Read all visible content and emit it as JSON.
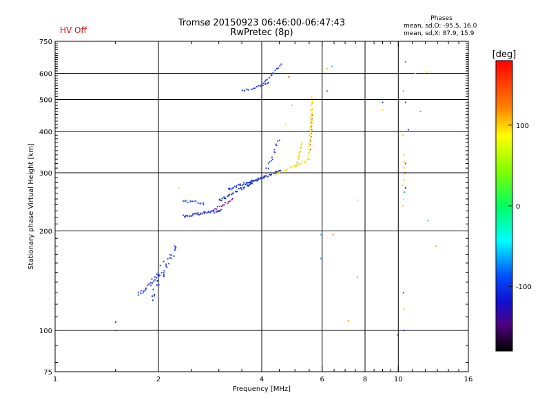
{
  "header": {
    "status": "HV Off",
    "title_line1": "Tromsø 20150923 06:46:00-06:47:43",
    "title_line2": "RwPretec (8p)"
  },
  "phase_stats": {
    "title": "Phases",
    "line_o": "mean, sd,O: -95.5, 16.0",
    "line_x": "mean, sd,X: 87.9, 15.9"
  },
  "colorbar": {
    "label": "[deg]",
    "range": [
      -180,
      180
    ],
    "ticks": [
      {
        "v": 100,
        "t": "100"
      },
      {
        "v": 0,
        "t": "0"
      },
      {
        "v": -100,
        "t": "-100"
      }
    ]
  },
  "chart_data": {
    "type": "scatter",
    "xlabel": "Frequency [MHz]",
    "ylabel": "Stationary phase Virtual Height [km]",
    "xscale": "log2",
    "yscale": "log",
    "xlim": [
      1,
      16
    ],
    "ylim": [
      75,
      750
    ],
    "xticks": [
      {
        "v": 1,
        "t": "1"
      },
      {
        "v": 2,
        "t": "2"
      },
      {
        "v": 4,
        "t": "4"
      },
      {
        "v": 6,
        "t": "6"
      },
      {
        "v": 8,
        "t": "8"
      },
      {
        "v": 10,
        "t": "10"
      },
      {
        "v": 16,
        "t": "16"
      }
    ],
    "yticks": [
      {
        "v": 75,
        "t": "75"
      },
      {
        "v": 100,
        "t": "100"
      },
      {
        "v": 200,
        "t": "200"
      },
      {
        "v": 300,
        "t": "300"
      },
      {
        "v": 400,
        "t": "400"
      },
      {
        "v": 500,
        "t": "500"
      },
      {
        "v": 600,
        "t": "600"
      },
      {
        "v": 750,
        "t": "750"
      }
    ],
    "xgrid": [
      2,
      4,
      6,
      8,
      10
    ],
    "ygrid": [
      100,
      200,
      300,
      400,
      500,
      600
    ],
    "traces": [
      {
        "f0": 1.5,
        "f1": 1.5,
        "h0": 100,
        "h1": 106,
        "n": 2,
        "jit": 0.0,
        "c": "#1030d0"
      },
      {
        "f0": 1.75,
        "f1": 2.02,
        "h0": 128,
        "h1": 148,
        "n": 22,
        "jit": 0.03,
        "c": "#2840e0"
      },
      {
        "f0": 1.92,
        "f1": 2.05,
        "h0": 124,
        "h1": 158,
        "n": 14,
        "jit": 0.05,
        "c": "#2038d8"
      },
      {
        "f0": 2.05,
        "f1": 2.27,
        "h0": 145,
        "h1": 182,
        "n": 20,
        "jit": 0.04,
        "c": "#2a48e8"
      },
      {
        "f0": 2.36,
        "f1": 3.05,
        "h0": 222,
        "h1": 230,
        "n": 40,
        "jit": 0.018,
        "c": "#2a3ce6"
      },
      {
        "f0": 2.36,
        "f1": 2.72,
        "h0": 248,
        "h1": 242,
        "n": 14,
        "jit": 0.02,
        "c": "#3050ea"
      },
      {
        "f0": 2.9,
        "f1": 3.3,
        "h0": 232,
        "h1": 250,
        "n": 14,
        "jit": 0.015,
        "c": "#8020b0"
      },
      {
        "f0": 3.0,
        "f1": 3.75,
        "h0": 246,
        "h1": 280,
        "n": 34,
        "jit": 0.02,
        "c": "#2030d8"
      },
      {
        "f0": 3.2,
        "f1": 4.1,
        "h0": 268,
        "h1": 292,
        "n": 36,
        "jit": 0.016,
        "c": "#2848e6"
      },
      {
        "f0": 3.7,
        "f1": 4.55,
        "h0": 280,
        "h1": 305,
        "n": 24,
        "jit": 0.014,
        "c": "#1c30d4"
      },
      {
        "f0": 4.1,
        "f1": 4.5,
        "h0": 296,
        "h1": 380,
        "n": 16,
        "jit": 0.025,
        "c": "#3048e8"
      },
      {
        "f0": 4.4,
        "f1": 5.5,
        "h0": 296,
        "h1": 330,
        "n": 20,
        "jit": 0.014,
        "c": "#f0e010"
      },
      {
        "f0": 5.05,
        "f1": 5.25,
        "h0": 314,
        "h1": 372,
        "n": 12,
        "jit": 0.015,
        "c": "#e8d008"
      },
      {
        "f0": 5.5,
        "f1": 5.62,
        "h0": 340,
        "h1": 505,
        "n": 36,
        "jit": 0.02,
        "c": "#f0e010"
      },
      {
        "f0": 5.55,
        "f1": 5.62,
        "h0": 355,
        "h1": 450,
        "n": 10,
        "jit": 0.01,
        "c": "#e07010"
      },
      {
        "f0": 3.52,
        "f1": 4.2,
        "h0": 530,
        "h1": 560,
        "n": 14,
        "jit": 0.012,
        "c": "#2030d8"
      },
      {
        "f0": 4.0,
        "f1": 4.55,
        "h0": 550,
        "h1": 640,
        "n": 14,
        "jit": 0.014,
        "c": "#2a48e8"
      },
      {
        "f0": 10.3,
        "f1": 10.4,
        "h0": 240,
        "h1": 340,
        "n": 9,
        "jit": 0.02,
        "c": "#e8d010"
      }
    ],
    "points": [
      [
        2.3,
        270,
        "#f0e010"
      ],
      [
        4.8,
        585,
        "#e06010"
      ],
      [
        4.7,
        420,
        "#f0e010"
      ],
      [
        4.9,
        480,
        "#e8d010"
      ],
      [
        6.2,
        620,
        "#f0c010"
      ],
      [
        6.4,
        630,
        "#20c0d0"
      ],
      [
        6.2,
        530,
        "#e04010"
      ],
      [
        5.95,
        195,
        "#30c0e0"
      ],
      [
        6.45,
        195,
        "#e0a020"
      ],
      [
        5.95,
        165,
        "#30b0e0"
      ],
      [
        7.6,
        248,
        "#f0d010"
      ],
      [
        7.6,
        145,
        "#f09010"
      ],
      [
        7.15,
        107,
        "#f0a010"
      ],
      [
        9.0,
        490,
        "#2030d0"
      ],
      [
        9.0,
        465,
        "#f0e010"
      ],
      [
        9.95,
        97,
        "#2030d0"
      ],
      [
        10.4,
        100,
        "#2030d0"
      ],
      [
        10.35,
        130,
        "#2030d0"
      ],
      [
        10.4,
        116,
        "#f0d010"
      ],
      [
        10.5,
        650,
        "#30a060"
      ],
      [
        10.35,
        530,
        "#30c0e0"
      ],
      [
        10.5,
        490,
        "#2030d0"
      ],
      [
        10.7,
        405,
        "#2030d0"
      ],
      [
        10.5,
        300,
        "#3040e0"
      ],
      [
        10.5,
        270,
        "#2030d0"
      ],
      [
        10.45,
        262,
        "#30c0e0"
      ],
      [
        11.2,
        600,
        "#f0e010"
      ],
      [
        11.6,
        460,
        "#30c0e0"
      ],
      [
        12.1,
        605,
        "#f0c010"
      ],
      [
        12.2,
        215,
        "#30c0e0"
      ],
      [
        12.9,
        180,
        "#e0a020"
      ],
      [
        10.3,
        390,
        "#f0d010"
      ],
      [
        10.5,
        320,
        "#8030b0"
      ]
    ]
  }
}
